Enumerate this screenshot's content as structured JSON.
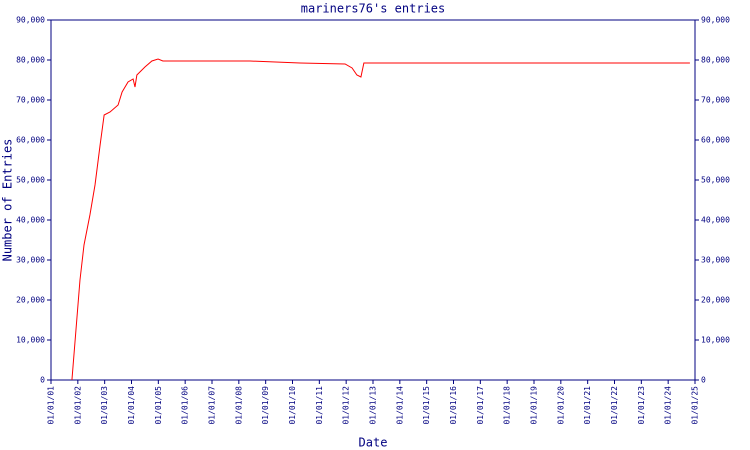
{
  "chart_data": {
    "type": "line",
    "title": "mariners76's entries",
    "x_label": "Date",
    "y_label": "Number of Entries",
    "x": [
      2001.78,
      2001.93,
      2002.08,
      2002.23,
      2002.45,
      2002.64,
      2002.83,
      2002.98,
      2003.2,
      2003.5,
      2003.65,
      2003.87,
      2004.06,
      2004.13,
      2004.2,
      2004.5,
      2004.76,
      2004.99,
      2005.17,
      2008.42,
      2010.28,
      2011.96,
      2012.22,
      2012.4,
      2012.55,
      2012.66,
      2024.81
    ],
    "series": [
      {
        "name": "entries",
        "color": "#ff0000",
        "values": [
          0,
          12500,
          25000,
          33750,
          41250,
          48750,
          58750,
          66250,
          67000,
          68750,
          72000,
          74500,
          75250,
          73250,
          76250,
          78250,
          79750,
          80250,
          79750,
          79750,
          79250,
          79000,
          78000,
          76250,
          75750,
          79250,
          79250
        ]
      }
    ],
    "xlim": [
      2001,
      2025
    ],
    "xticks": [
      {
        "value": 2001,
        "label": "01/01/01"
      },
      {
        "value": 2002,
        "label": "01/01/02"
      },
      {
        "value": 2003,
        "label": "01/01/03"
      },
      {
        "value": 2004,
        "label": "01/01/04"
      },
      {
        "value": 2005,
        "label": "01/01/05"
      },
      {
        "value": 2006,
        "label": "01/01/06"
      },
      {
        "value": 2007,
        "label": "01/01/07"
      },
      {
        "value": 2008,
        "label": "01/01/08"
      },
      {
        "value": 2009,
        "label": "01/01/09"
      },
      {
        "value": 2010,
        "label": "01/01/10"
      },
      {
        "value": 2011,
        "label": "01/01/11"
      },
      {
        "value": 2012,
        "label": "01/01/12"
      },
      {
        "value": 2013,
        "label": "01/01/13"
      },
      {
        "value": 2014,
        "label": "01/01/14"
      },
      {
        "value": 2015,
        "label": "01/01/15"
      },
      {
        "value": 2016,
        "label": "01/01/16"
      },
      {
        "value": 2017,
        "label": "01/01/17"
      },
      {
        "value": 2018,
        "label": "01/01/18"
      },
      {
        "value": 2019,
        "label": "01/01/19"
      },
      {
        "value": 2020,
        "label": "01/01/20"
      },
      {
        "value": 2021,
        "label": "01/01/21"
      },
      {
        "value": 2022,
        "label": "01/01/22"
      },
      {
        "value": 2023,
        "label": "01/01/23"
      },
      {
        "value": 2024,
        "label": "01/01/24"
      },
      {
        "value": 2025,
        "label": "01/01/25"
      }
    ],
    "ylim": [
      0,
      90000
    ],
    "yticks": [
      0,
      {
        "value": 10000,
        "label": "10,000"
      },
      {
        "value": 20000,
        "label": "20,000"
      },
      {
        "value": 30000,
        "label": "30,000"
      },
      {
        "value": 40000,
        "label": "40,000"
      },
      {
        "value": 50000,
        "label": "50,000"
      },
      {
        "value": 60000,
        "label": "60,000"
      },
      {
        "value": 70000,
        "label": "70,000"
      },
      {
        "value": 80000,
        "label": "80,000"
      },
      {
        "value": 90000,
        "label": "90,000"
      }
    ],
    "y2lim": [
      0,
      90000
    ],
    "y2ticks": [
      0,
      {
        "value": 10000,
        "label": "10,000"
      },
      {
        "value": 20000,
        "label": "20,000"
      },
      {
        "value": 30000,
        "label": "30,000"
      },
      {
        "value": 40000,
        "label": "40,000"
      },
      {
        "value": 50000,
        "label": "50,000"
      },
      {
        "value": 60000,
        "label": "60,000"
      },
      {
        "value": 70000,
        "label": "70,000"
      },
      {
        "value": 80000,
        "label": "80,000"
      },
      {
        "value": 90000,
        "label": "90,000"
      }
    ]
  }
}
